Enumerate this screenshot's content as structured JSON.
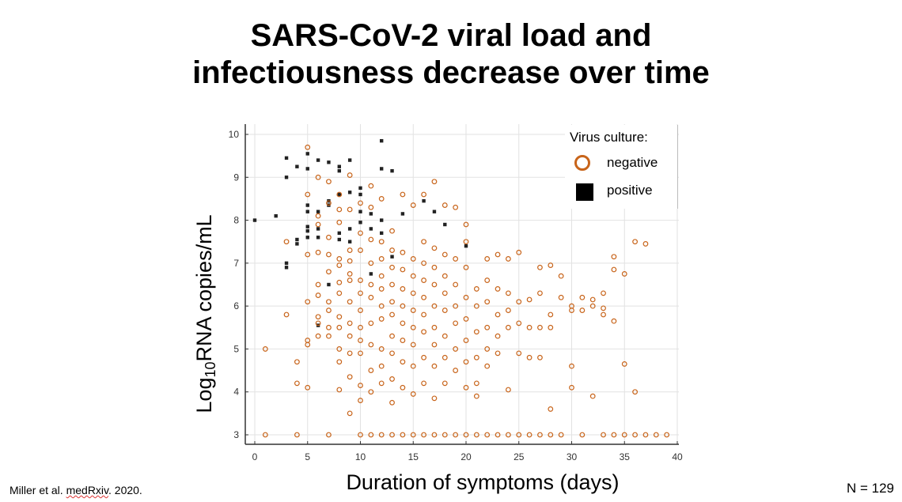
{
  "slide": {
    "title_line1": "SARS-CoV-2 viral load and",
    "title_line2": "infectiousness decrease over time",
    "citation_part1": "Miller et al. ",
    "citation_part2": "medRxiv",
    "citation_part3": ". 2020.",
    "n_label": "N = 129"
  },
  "chart_data": {
    "type": "scatter",
    "xlabel": "Duration of symptoms (days)",
    "ylabel_prefix": "Log",
    "ylabel_sub": "10",
    "ylabel_suffix": "RNA copies/mL",
    "xlim": [
      0,
      40
    ],
    "ylim": [
      3,
      10
    ],
    "x_ticks": [
      0,
      5,
      10,
      15,
      20,
      25,
      30,
      35,
      40
    ],
    "y_ticks": [
      3,
      4,
      5,
      6,
      7,
      8,
      9,
      10
    ],
    "grid": true,
    "legend": {
      "title": "Virus culture:",
      "placement": "top-right",
      "entries": [
        "negative",
        "positive"
      ]
    },
    "colors": {
      "negative": "#c8641a",
      "positive": "#222222"
    },
    "series": [
      {
        "name": "positive",
        "marker": "filled-square",
        "points": [
          [
            0,
            8.0
          ],
          [
            2,
            8.1
          ],
          [
            3,
            9.0
          ],
          [
            3,
            9.45
          ],
          [
            3,
            7.0
          ],
          [
            3,
            6.9
          ],
          [
            4,
            9.25
          ],
          [
            4,
            7.55
          ],
          [
            4,
            7.45
          ],
          [
            5,
            9.55
          ],
          [
            5,
            9.2
          ],
          [
            5,
            8.35
          ],
          [
            5,
            8.2
          ],
          [
            5,
            7.85
          ],
          [
            5,
            7.75
          ],
          [
            5,
            7.6
          ],
          [
            6,
            9.4
          ],
          [
            6,
            8.2
          ],
          [
            6,
            7.8
          ],
          [
            6,
            7.6
          ],
          [
            6,
            5.55
          ],
          [
            7,
            9.35
          ],
          [
            7,
            8.45
          ],
          [
            7,
            8.35
          ],
          [
            7,
            6.5
          ],
          [
            8,
            9.25
          ],
          [
            8,
            9.15
          ],
          [
            8,
            8.6
          ],
          [
            8,
            7.7
          ],
          [
            8,
            7.55
          ],
          [
            9,
            9.4
          ],
          [
            9,
            8.65
          ],
          [
            9,
            7.8
          ],
          [
            9,
            7.5
          ],
          [
            10,
            8.75
          ],
          [
            10,
            8.6
          ],
          [
            10,
            8.2
          ],
          [
            10,
            7.95
          ],
          [
            11,
            8.15
          ],
          [
            11,
            7.8
          ],
          [
            11,
            6.75
          ],
          [
            12,
            9.85
          ],
          [
            12,
            9.2
          ],
          [
            12,
            8.0
          ],
          [
            12,
            7.7
          ],
          [
            13,
            9.15
          ],
          [
            13,
            7.15
          ],
          [
            14,
            8.15
          ],
          [
            16,
            8.45
          ],
          [
            17,
            8.2
          ],
          [
            18,
            7.9
          ],
          [
            20,
            7.4
          ]
        ]
      },
      {
        "name": "negative",
        "marker": "open-circle",
        "points": [
          [
            1,
            5.0
          ],
          [
            3,
            7.5
          ],
          [
            3,
            5.8
          ],
          [
            4,
            4.7
          ],
          [
            4,
            4.2
          ],
          [
            5,
            9.7
          ],
          [
            5,
            8.6
          ],
          [
            5,
            7.2
          ],
          [
            5,
            6.1
          ],
          [
            5,
            5.2
          ],
          [
            5,
            5.1
          ],
          [
            5,
            4.1
          ],
          [
            6,
            9.0
          ],
          [
            6,
            8.1
          ],
          [
            6,
            7.9
          ],
          [
            6,
            7.25
          ],
          [
            6,
            6.5
          ],
          [
            6,
            6.25
          ],
          [
            6,
            5.75
          ],
          [
            6,
            5.6
          ],
          [
            6,
            5.3
          ],
          [
            7,
            8.9
          ],
          [
            7,
            8.4
          ],
          [
            7,
            7.6
          ],
          [
            7,
            7.2
          ],
          [
            7,
            6.8
          ],
          [
            7,
            6.1
          ],
          [
            7,
            5.9
          ],
          [
            7,
            5.5
          ],
          [
            7,
            5.3
          ],
          [
            8,
            8.6
          ],
          [
            8,
            8.25
          ],
          [
            8,
            7.95
          ],
          [
            8,
            7.1
          ],
          [
            8,
            6.95
          ],
          [
            8,
            6.55
          ],
          [
            8,
            6.3
          ],
          [
            8,
            5.75
          ],
          [
            8,
            5.5
          ],
          [
            8,
            5.0
          ],
          [
            8,
            4.7
          ],
          [
            8,
            4.05
          ],
          [
            9,
            9.05
          ],
          [
            9,
            8.25
          ],
          [
            9,
            7.3
          ],
          [
            9,
            7.05
          ],
          [
            9,
            6.75
          ],
          [
            9,
            6.6
          ],
          [
            9,
            6.1
          ],
          [
            9,
            5.6
          ],
          [
            9,
            5.3
          ],
          [
            9,
            4.9
          ],
          [
            9,
            4.35
          ],
          [
            9,
            3.5
          ],
          [
            10,
            8.4
          ],
          [
            10,
            7.7
          ],
          [
            10,
            7.3
          ],
          [
            10,
            6.6
          ],
          [
            10,
            6.3
          ],
          [
            10,
            5.9
          ],
          [
            10,
            5.5
          ],
          [
            10,
            5.2
          ],
          [
            10,
            4.9
          ],
          [
            10,
            4.15
          ],
          [
            10,
            3.8
          ],
          [
            11,
            8.8
          ],
          [
            11,
            8.3
          ],
          [
            11,
            7.55
          ],
          [
            11,
            7.0
          ],
          [
            11,
            6.5
          ],
          [
            11,
            6.2
          ],
          [
            11,
            5.6
          ],
          [
            11,
            5.1
          ],
          [
            11,
            4.5
          ],
          [
            11,
            4.0
          ],
          [
            12,
            8.5
          ],
          [
            12,
            7.5
          ],
          [
            12,
            7.1
          ],
          [
            12,
            6.7
          ],
          [
            12,
            6.4
          ],
          [
            12,
            6.0
          ],
          [
            12,
            5.7
          ],
          [
            12,
            5.0
          ],
          [
            12,
            4.6
          ],
          [
            12,
            4.2
          ],
          [
            13,
            7.75
          ],
          [
            13,
            7.3
          ],
          [
            13,
            6.9
          ],
          [
            13,
            6.5
          ],
          [
            13,
            6.1
          ],
          [
            13,
            5.8
          ],
          [
            13,
            5.3
          ],
          [
            13,
            4.9
          ],
          [
            13,
            4.3
          ],
          [
            13,
            3.75
          ],
          [
            14,
            8.6
          ],
          [
            14,
            7.25
          ],
          [
            14,
            6.85
          ],
          [
            14,
            6.4
          ],
          [
            14,
            6.0
          ],
          [
            14,
            5.6
          ],
          [
            14,
            5.2
          ],
          [
            14,
            4.7
          ],
          [
            14,
            4.1
          ],
          [
            15,
            8.35
          ],
          [
            15,
            7.1
          ],
          [
            15,
            6.7
          ],
          [
            15,
            6.3
          ],
          [
            15,
            5.9
          ],
          [
            15,
            5.5
          ],
          [
            15,
            5.1
          ],
          [
            15,
            4.6
          ],
          [
            15,
            3.95
          ],
          [
            16,
            8.6
          ],
          [
            16,
            7.5
          ],
          [
            16,
            7.0
          ],
          [
            16,
            6.6
          ],
          [
            16,
            6.2
          ],
          [
            16,
            5.8
          ],
          [
            16,
            5.4
          ],
          [
            16,
            4.8
          ],
          [
            16,
            4.2
          ],
          [
            17,
            8.9
          ],
          [
            17,
            7.35
          ],
          [
            17,
            6.9
          ],
          [
            17,
            6.5
          ],
          [
            17,
            6.0
          ],
          [
            17,
            5.5
          ],
          [
            17,
            5.1
          ],
          [
            17,
            4.6
          ],
          [
            17,
            3.85
          ],
          [
            18,
            8.35
          ],
          [
            18,
            7.2
          ],
          [
            18,
            6.7
          ],
          [
            18,
            6.3
          ],
          [
            18,
            5.9
          ],
          [
            18,
            5.3
          ],
          [
            18,
            4.8
          ],
          [
            18,
            4.2
          ],
          [
            19,
            8.3
          ],
          [
            19,
            7.1
          ],
          [
            19,
            6.5
          ],
          [
            19,
            6.0
          ],
          [
            19,
            5.6
          ],
          [
            19,
            5.0
          ],
          [
            19,
            4.5
          ],
          [
            20,
            7.9
          ],
          [
            20,
            7.5
          ],
          [
            20,
            6.9
          ],
          [
            20,
            6.2
          ],
          [
            20,
            5.7
          ],
          [
            20,
            5.2
          ],
          [
            20,
            4.7
          ],
          [
            20,
            4.1
          ],
          [
            21,
            6.4
          ],
          [
            21,
            6.0
          ],
          [
            21,
            5.4
          ],
          [
            21,
            4.8
          ],
          [
            21,
            4.2
          ],
          [
            21,
            3.9
          ],
          [
            22,
            7.1
          ],
          [
            22,
            6.6
          ],
          [
            22,
            6.1
          ],
          [
            22,
            5.5
          ],
          [
            22,
            5.0
          ],
          [
            22,
            4.6
          ],
          [
            23,
            7.2
          ],
          [
            23,
            6.4
          ],
          [
            23,
            5.8
          ],
          [
            23,
            5.3
          ],
          [
            23,
            4.9
          ],
          [
            24,
            7.1
          ],
          [
            24,
            6.3
          ],
          [
            24,
            5.9
          ],
          [
            24,
            5.5
          ],
          [
            24,
            4.05
          ],
          [
            25,
            7.25
          ],
          [
            25,
            6.1
          ],
          [
            25,
            5.6
          ],
          [
            25,
            4.9
          ],
          [
            26,
            6.15
          ],
          [
            26,
            5.5
          ],
          [
            26,
            4.8
          ],
          [
            27,
            6.9
          ],
          [
            27,
            6.3
          ],
          [
            27,
            5.5
          ],
          [
            27,
            4.8
          ],
          [
            28,
            6.95
          ],
          [
            28,
            5.8
          ],
          [
            28,
            5.5
          ],
          [
            28,
            3.6
          ],
          [
            29,
            6.7
          ],
          [
            29,
            6.2
          ],
          [
            30,
            6.0
          ],
          [
            30,
            5.9
          ],
          [
            30,
            4.6
          ],
          [
            30,
            4.1
          ],
          [
            31,
            6.2
          ],
          [
            31,
            5.9
          ],
          [
            32,
            6.15
          ],
          [
            32,
            6.0
          ],
          [
            32,
            3.9
          ],
          [
            33,
            6.3
          ],
          [
            33,
            5.95
          ],
          [
            33,
            5.8
          ],
          [
            34,
            7.15
          ],
          [
            34,
            6.85
          ],
          [
            34,
            5.65
          ],
          [
            35,
            6.75
          ],
          [
            35,
            4.65
          ],
          [
            36,
            7.5
          ],
          [
            36,
            4.0
          ],
          [
            37,
            7.45
          ],
          [
            1,
            3.0
          ],
          [
            4,
            3.0
          ],
          [
            7,
            3.0
          ],
          [
            10,
            3.0
          ],
          [
            11,
            3.0
          ],
          [
            12,
            3.0
          ],
          [
            13,
            3.0
          ],
          [
            14,
            3.0
          ],
          [
            15,
            3.0
          ],
          [
            16,
            3.0
          ],
          [
            17,
            3.0
          ],
          [
            18,
            3.0
          ],
          [
            19,
            3.0
          ],
          [
            20,
            3.0
          ],
          [
            21,
            3.0
          ],
          [
            22,
            3.0
          ],
          [
            23,
            3.0
          ],
          [
            24,
            3.0
          ],
          [
            25,
            3.0
          ],
          [
            26,
            3.0
          ],
          [
            27,
            3.0
          ],
          [
            28,
            3.0
          ],
          [
            29,
            3.0
          ],
          [
            31,
            3.0
          ],
          [
            33,
            3.0
          ],
          [
            34,
            3.0
          ],
          [
            35,
            3.0
          ],
          [
            36,
            3.0
          ],
          [
            37,
            3.0
          ],
          [
            38,
            3.0
          ],
          [
            39,
            3.0
          ]
        ]
      }
    ]
  }
}
